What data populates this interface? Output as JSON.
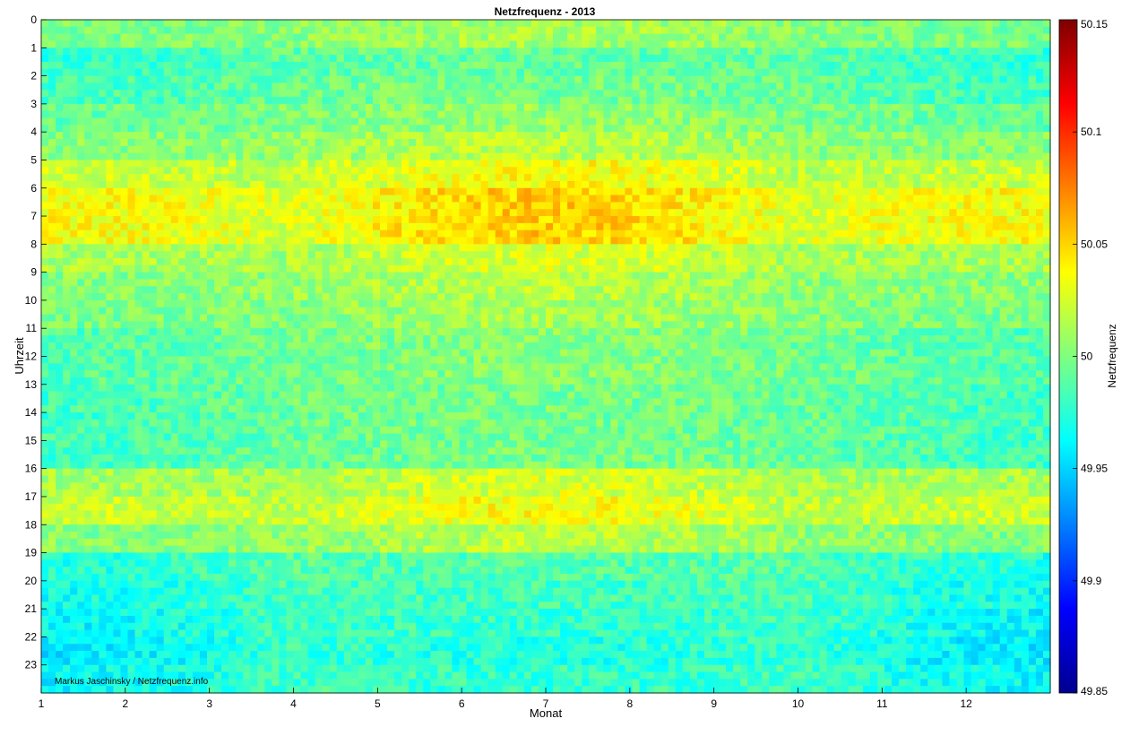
{
  "chart_data": {
    "type": "heatmap",
    "title": "Netzfrequenz - 2013",
    "xlabel": "Monat",
    "ylabel": "Uhrzeit",
    "x_ticks": [
      "1",
      "2",
      "3",
      "4",
      "5",
      "6",
      "7",
      "8",
      "9",
      "10",
      "11",
      "12"
    ],
    "y_ticks": [
      "0",
      "1",
      "2",
      "3",
      "4",
      "5",
      "6",
      "7",
      "8",
      "9",
      "10",
      "11",
      "12",
      "13",
      "14",
      "15",
      "16",
      "17",
      "18",
      "19",
      "20",
      "21",
      "22",
      "23"
    ],
    "xlim": [
      1,
      13
    ],
    "ylim": [
      0,
      24
    ],
    "y_direction": "reversed",
    "colorbar": {
      "label": "Netzfrequenz",
      "range": [
        49.85,
        50.15
      ],
      "ticks": [
        "50.15",
        "50.1",
        "50.05",
        "50",
        "49.95",
        "49.9",
        "49.85"
      ],
      "colormap": "jet"
    },
    "hourly_profile_deviation": [
      0.005,
      -0.015,
      -0.01,
      0.0,
      0.01,
      0.03,
      0.045,
      0.045,
      0.02,
      0.01,
      0.005,
      -0.005,
      -0.005,
      -0.01,
      -0.01,
      -0.01,
      0.02,
      0.03,
      0.01,
      -0.02,
      -0.025,
      -0.03,
      -0.035,
      -0.03
    ],
    "seasonal_summer_shift": 0.015,
    "annotation": "Markus Jaschinsky / Netzfrequenz.info"
  }
}
